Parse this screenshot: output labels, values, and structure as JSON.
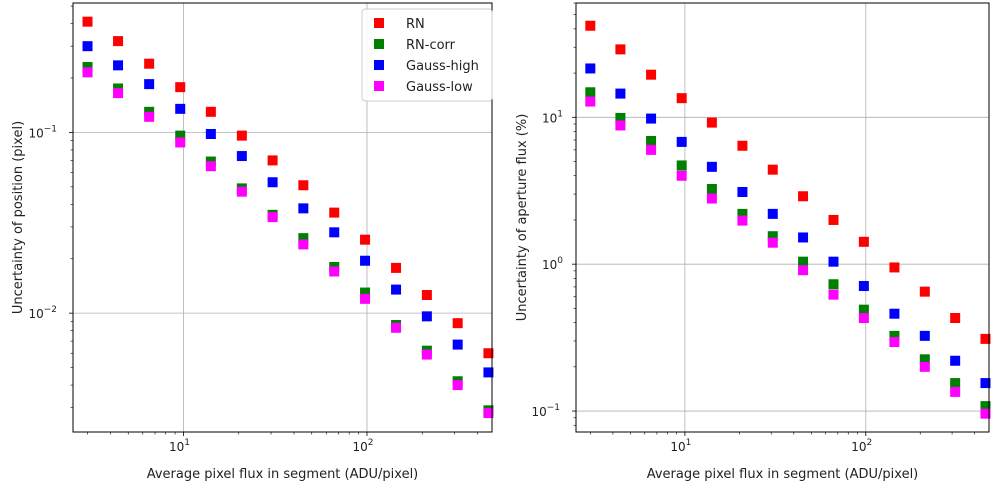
{
  "chart_data": [
    {
      "type": "scatter",
      "xlabel": "Average pixel flux in segment (ADU/pixel)",
      "ylabel": "Uncertainty of position (pixel)",
      "xscale": "log",
      "yscale": "log",
      "xlim": [
        2.5,
        480
      ],
      "ylim": [
        0.0022,
        0.52
      ],
      "grid": true,
      "legend_position": "top-right",
      "x": [
        3.0,
        4.4,
        6.5,
        9.6,
        14.1,
        20.8,
        30.6,
        45.0,
        66.3,
        97.6,
        144,
        212,
        312,
        459
      ],
      "series": [
        {
          "name": "RN",
          "color": "#ff0000",
          "values": [
            0.41,
            0.32,
            0.24,
            0.178,
            0.13,
            0.096,
            0.07,
            0.051,
            0.036,
            0.0255,
            0.0178,
            0.0126,
            0.0088,
            0.006
          ]
        },
        {
          "name": "RN-corr",
          "color": "#008000",
          "values": [
            0.23,
            0.175,
            0.13,
            0.096,
            0.069,
            0.049,
            0.035,
            0.026,
            0.018,
            0.013,
            0.0086,
            0.0062,
            0.0042,
            0.0029
          ]
        },
        {
          "name": "Gauss-high",
          "color": "#0000ff",
          "values": [
            0.3,
            0.235,
            0.185,
            0.135,
            0.098,
            0.074,
            0.053,
            0.038,
            0.028,
            0.0195,
            0.0135,
            0.0096,
            0.0067,
            0.0047
          ]
        },
        {
          "name": "Gauss-low",
          "color": "#ff00ff",
          "values": [
            0.215,
            0.165,
            0.122,
            0.088,
            0.065,
            0.047,
            0.034,
            0.024,
            0.017,
            0.012,
            0.0083,
            0.0059,
            0.004,
            0.0028
          ]
        }
      ],
      "x_ticks": [
        {
          "value": 10,
          "base": "10",
          "exp": "1"
        },
        {
          "value": 100,
          "base": "10",
          "exp": "2"
        }
      ],
      "y_ticks": [
        {
          "value": 0.1,
          "base": "10",
          "exp": "−1"
        },
        {
          "value": 0.01,
          "base": "10",
          "exp": "−2"
        }
      ]
    },
    {
      "type": "scatter",
      "xlabel": "Average pixel flux in segment (ADU/pixel)",
      "ylabel": "Uncertainty of aperture flux (%)",
      "xscale": "log",
      "yscale": "log",
      "xlim": [
        2.5,
        480
      ],
      "ylim": [
        0.072,
        60
      ],
      "grid": true,
      "x": [
        3.0,
        4.4,
        6.5,
        9.6,
        14.1,
        20.8,
        30.6,
        45.0,
        66.3,
        97.6,
        144,
        212,
        312,
        459
      ],
      "series": [
        {
          "name": "RN",
          "color": "#ff0000",
          "values": [
            42,
            29,
            19.5,
            13.5,
            9.2,
            6.4,
            4.4,
            2.9,
            2.0,
            1.42,
            0.95,
            0.65,
            0.43,
            0.31
          ]
        },
        {
          "name": "RN-corr",
          "color": "#008000",
          "values": [
            14.8,
            9.9,
            6.9,
            4.7,
            3.25,
            2.2,
            1.55,
            1.04,
            0.73,
            0.49,
            0.325,
            0.225,
            0.155,
            0.108
          ]
        },
        {
          "name": "Gauss-high",
          "color": "#0000ff",
          "values": [
            21.5,
            14.5,
            9.8,
            6.8,
            4.6,
            3.1,
            2.2,
            1.52,
            1.04,
            0.71,
            0.46,
            0.325,
            0.22,
            0.155
          ]
        },
        {
          "name": "Gauss-low",
          "color": "#ff00ff",
          "values": [
            12.8,
            8.8,
            6.0,
            4.0,
            2.8,
            1.98,
            1.4,
            0.91,
            0.62,
            0.43,
            0.295,
            0.2,
            0.135,
            0.096
          ]
        }
      ],
      "x_ticks": [
        {
          "value": 10,
          "base": "10",
          "exp": "1"
        },
        {
          "value": 100,
          "base": "10",
          "exp": "2"
        }
      ],
      "y_ticks": [
        {
          "value": 10,
          "base": "10",
          "exp": "1"
        },
        {
          "value": 1,
          "base": "10",
          "exp": "0"
        },
        {
          "value": 0.1,
          "base": "10",
          "exp": "−1"
        }
      ]
    }
  ]
}
